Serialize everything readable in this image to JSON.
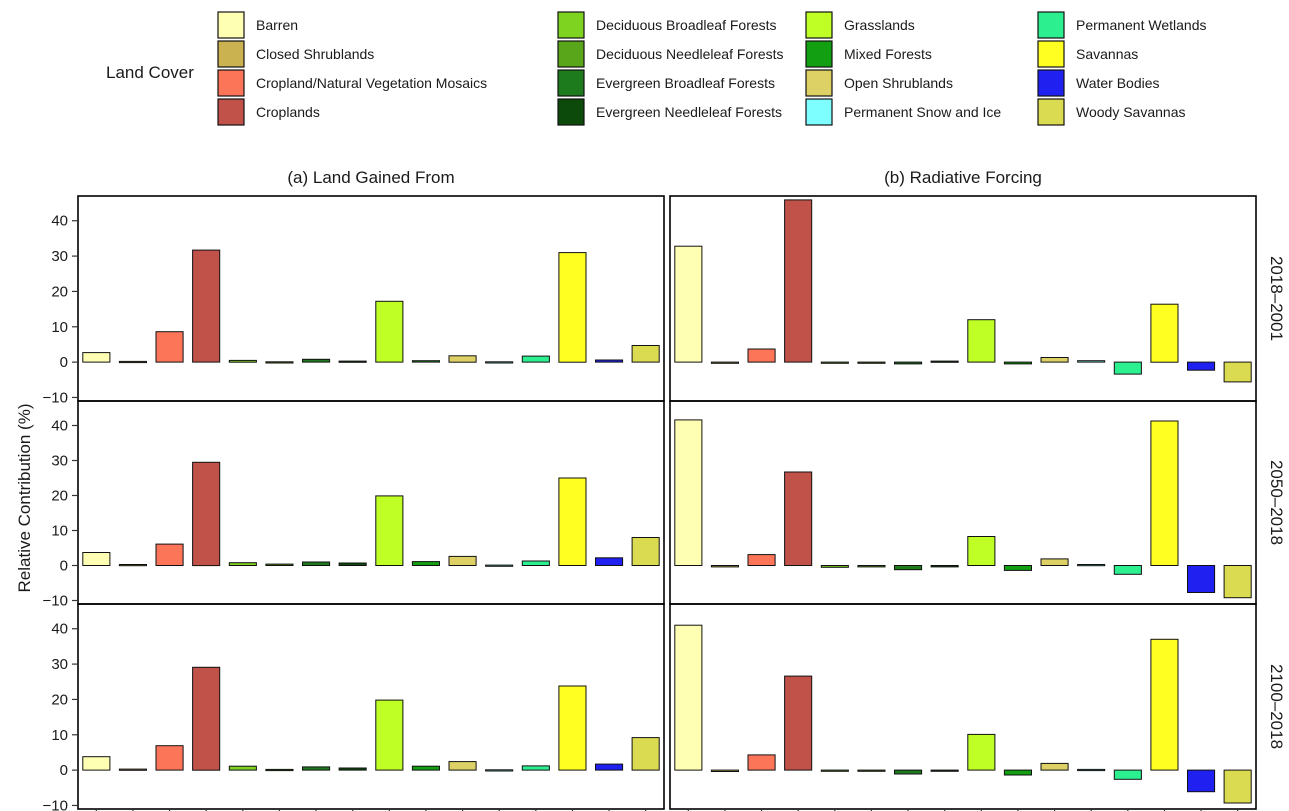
{
  "chart_data": {
    "type": "bar",
    "facets": "2 columns x 3 rows",
    "ylabel": "Relative Contribution (%)",
    "ylim": [
      -11,
      47
    ],
    "yticks": [
      -10,
      0,
      10,
      20,
      30,
      40
    ],
    "legend": {
      "title": "Land Cover",
      "position": "top"
    },
    "categories": [
      "Barren",
      "Closed Shrublands",
      "Cropland/Natural Vegetation Mosaics",
      "Croplands",
      "Deciduous Broadleaf Forests",
      "Deciduous Needleleaf Forests",
      "Evergreen Broadleaf Forests",
      "Evergreen Needleleaf Forests",
      "Grasslands",
      "Mixed Forests",
      "Open Shrublands",
      "Permanent Snow and Ice",
      "Permanent Wetlands",
      "Savannas",
      "Water Bodies",
      "Woody Savannas"
    ],
    "colors": [
      "#ffffb3",
      "#c9b24f",
      "#fc7559",
      "#c0524a",
      "#7ed321",
      "#5aa61b",
      "#1d7a1d",
      "#0b4a0b",
      "#bfff26",
      "#12a012",
      "#ddd165",
      "#7effff",
      "#2cef8f",
      "#ffff22",
      "#2020f0",
      "#dbdb52"
    ],
    "columns": [
      "(a) Land Gained From",
      "(b) Radiative Forcing"
    ],
    "rows": [
      "2018–2001",
      "2050–2018",
      "2100–2018"
    ],
    "panels": [
      {
        "column": "(a) Land Gained From",
        "row": "2018–2001",
        "values": [
          2.7,
          0.2,
          8.6,
          31.7,
          0.5,
          0.1,
          0.8,
          0.3,
          17.2,
          0.4,
          1.8,
          0.1,
          1.7,
          31.0,
          0.6,
          4.7
        ]
      },
      {
        "column": "(b) Radiative Forcing",
        "row": "2018–2001",
        "values": [
          32.8,
          -0.3,
          3.7,
          45.9,
          -0.3,
          -0.2,
          -0.5,
          0.3,
          12.0,
          -0.5,
          1.3,
          0.4,
          -3.4,
          16.4,
          -2.3,
          -5.6
        ]
      },
      {
        "column": "(a) Land Gained From",
        "row": "2050–2018",
        "values": [
          3.7,
          0.3,
          6.1,
          29.5,
          0.8,
          0.4,
          1.0,
          0.7,
          19.9,
          1.1,
          2.6,
          0.1,
          1.3,
          25.0,
          2.2,
          8.0
        ]
      },
      {
        "column": "(b) Radiative Forcing",
        "row": "2050–2018",
        "values": [
          41.6,
          -0.4,
          3.1,
          26.7,
          -0.5,
          -0.4,
          -1.2,
          -0.4,
          8.3,
          -1.4,
          1.9,
          0.3,
          -2.5,
          41.3,
          -7.7,
          -9.2
        ]
      },
      {
        "column": "(a) Land Gained From",
        "row": "2100–2018",
        "values": [
          3.8,
          0.3,
          6.9,
          29.1,
          1.1,
          0.2,
          0.9,
          0.6,
          19.8,
          1.1,
          2.4,
          0.1,
          1.2,
          23.8,
          1.7,
          9.2
        ]
      },
      {
        "column": "(b) Radiative Forcing",
        "row": "2100–2018",
        "values": [
          41.0,
          -0.4,
          4.3,
          26.6,
          -0.3,
          -0.3,
          -1.1,
          -0.3,
          10.1,
          -1.4,
          1.9,
          0.2,
          -2.6,
          37.0,
          -6.1,
          -9.3
        ]
      }
    ]
  }
}
